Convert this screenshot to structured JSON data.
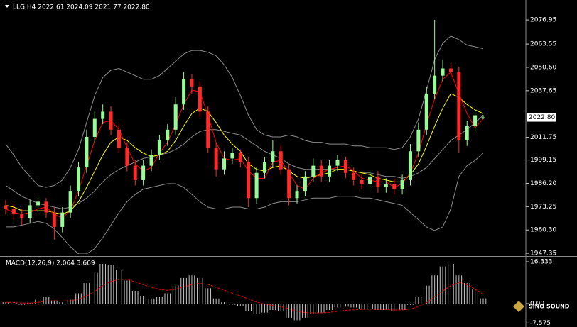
{
  "chart_data": [
    {
      "type": "candlestick",
      "title": "LLG,H4  2022.61 2024.09 2021.77 2022.80",
      "up_color": "#98fb98",
      "down_color": "#ff2a2a",
      "ylim": [
        1947.0,
        2088.0
      ],
      "yticks": [
        2076.95,
        2063.55,
        {
          "value": 2050.6,
          "label": "2050.60"
        },
        2037.65,
        2011.75,
        1999.15,
        {
          "value": 1986.2,
          "label": "1986.20"
        },
        1973.25,
        {
          "value": 1960.3,
          "label": "1960.30"
        },
        1947.35
      ],
      "last_price": {
        "value": 2022.8,
        "label": "2022.80"
      },
      "open": [
        1974,
        1972,
        1969,
        1967,
        1974,
        1976,
        1970,
        1962,
        1970,
        1982,
        1995,
        2012,
        2022,
        2026,
        2016,
        2006,
        1996,
        1988,
        1996,
        2002,
        2010,
        2016,
        2030,
        2044,
        2040,
        2026,
        2006,
        1994,
        2000,
        2003,
        1998,
        1978,
        1992,
        1998,
        2004,
        1994,
        1978,
        1982,
        1990,
        1996,
        1990,
        1996,
        1999,
        1992,
        1988,
        1986,
        1990,
        1984,
        1986,
        1983,
        1988,
        2004,
        2016,
        2036,
        2046,
        2050,
        2048,
        2010,
        2018,
        2022.61
      ],
      "high": [
        1977,
        1975,
        1972,
        1977,
        1979,
        1978,
        1973,
        1973,
        1985,
        1998,
        2016,
        2026,
        2030,
        2029,
        2019,
        2009,
        1999,
        1999,
        2005,
        2013,
        2019,
        2034,
        2048,
        2047,
        2043,
        2029,
        2009,
        2004,
        2006,
        2005,
        2001,
        1995,
        2001,
        2010,
        2007,
        1997,
        1985,
        1993,
        2000,
        1999,
        1999,
        2002,
        2001,
        1995,
        1991,
        1993,
        1993,
        1989,
        1989,
        1991,
        2008,
        2020,
        2040,
        2077,
        2055,
        2053,
        2051,
        2021,
        2027,
        2024.09
      ],
      "low": [
        1969,
        1966,
        1963,
        1964,
        1971,
        1967,
        1955,
        1959,
        1967,
        1979,
        1992,
        2009,
        2019,
        2013,
        2003,
        1993,
        1985,
        1985,
        1993,
        1999,
        2007,
        2013,
        2027,
        2036,
        2023,
        2003,
        1990,
        1991,
        1997,
        1995,
        1973,
        1975,
        1989,
        1995,
        1991,
        1974,
        1975,
        1979,
        1987,
        1987,
        1987,
        1993,
        1989,
        1985,
        1983,
        1983,
        1981,
        1981,
        1980,
        1980,
        1985,
        2001,
        2013,
        2033,
        2043,
        2045,
        2003,
        2007,
        2015,
        2021.77
      ],
      "close": [
        1972,
        1969,
        1967,
        1974,
        1976,
        1970,
        1962,
        1970,
        1982,
        1995,
        2012,
        2022,
        2026,
        2016,
        2006,
        1996,
        1988,
        1996,
        2002,
        2010,
        2016,
        2030,
        2044,
        2040,
        2026,
        2006,
        1994,
        2000,
        2003,
        1998,
        1978,
        1992,
        1998,
        2004,
        1994,
        1978,
        1982,
        1990,
        1996,
        1990,
        1996,
        1999,
        1992,
        1988,
        1986,
        1990,
        1984,
        1986,
        1983,
        1988,
        2004,
        2016,
        2036,
        2046,
        2050,
        2048,
        2010,
        2018,
        2024,
        2022.8
      ],
      "series": [
        {
          "color": "#8c8c8c",
          "values": [
            2008,
            2002,
            1995,
            1990,
            1985,
            1984,
            1985,
            1988,
            1995,
            2005,
            2020,
            2035,
            2045,
            2049,
            2050,
            2048,
            2046,
            2044,
            2044,
            2046,
            2050,
            2054,
            2058,
            2060,
            2060,
            2059,
            2057,
            2052,
            2045,
            2035,
            2024,
            2016,
            2013,
            2012,
            2012,
            2013,
            2012,
            2010,
            2009,
            2009,
            2008,
            2008,
            2008,
            2007,
            2007,
            2006,
            2006,
            2006,
            2005,
            2006,
            2012,
            2022,
            2038,
            2055,
            2064,
            2068,
            2066,
            2063,
            2062,
            2061
          ]
        },
        {
          "color": "#8c8c8c",
          "values": [
            1985,
            1982,
            1979,
            1977,
            1975,
            1974,
            1973,
            1972,
            1973,
            1975,
            1978,
            1982,
            1987,
            1991,
            1994,
            1996,
            1998,
            2000,
            2001,
            2002,
            2003,
            2005,
            2008,
            2012,
            2015,
            2016,
            2016,
            2015,
            2014,
            2013,
            2010,
            2007,
            2004,
            2002,
            2000,
            1997,
            1995,
            1994,
            1994,
            1994,
            1994,
            1994,
            1994,
            1993,
            1992,
            1992,
            1991,
            1990,
            1990,
            1989,
            1990,
            1992,
            1995,
            2000,
            2005,
            2010,
            2013,
            2016,
            2020,
            2024
          ]
        },
        {
          "color": "#8c8c8c",
          "values": [
            1962,
            1962,
            1963,
            1964,
            1965,
            1964,
            1961,
            1956,
            1951,
            1947,
            1947,
            1950,
            1956,
            1963,
            1970,
            1976,
            1980,
            1983,
            1984,
            1985,
            1986,
            1986,
            1984,
            1980,
            1976,
            1973,
            1972,
            1972,
            1973,
            1973,
            1972,
            1972,
            1973,
            1975,
            1976,
            1976,
            1976,
            1977,
            1978,
            1978,
            1978,
            1979,
            1979,
            1979,
            1978,
            1978,
            1977,
            1976,
            1975,
            1974,
            1970,
            1966,
            1962,
            1960,
            1962,
            1972,
            1990,
            1996,
            1999,
            2003
          ]
        },
        {
          "color": "#ffff00",
          "values": [
            1974,
            1973,
            1971,
            1971,
            1971,
            1971,
            1970,
            1969,
            1971,
            1976,
            1984,
            1993,
            2002,
            2009,
            2012,
            2010,
            2006,
            2003,
            2001,
            2002,
            2004,
            2010,
            2018,
            2025,
            2028,
            2026,
            2020,
            2013,
            2008,
            2004,
            1997,
            1994,
            1993,
            1995,
            1996,
            1993,
            1990,
            1989,
            1990,
            1991,
            1992,
            1994,
            1994,
            1993,
            1992,
            1991,
            1989,
            1988,
            1987,
            1987,
            1991,
            1997,
            2007,
            2018,
            2028,
            2036,
            2034,
            2030,
            2027,
            2025
          ]
        },
        {
          "color": "#ff0000",
          "values": [
            1972,
            1970,
            1969,
            1970,
            1972,
            1973,
            1969,
            1967,
            1971,
            1982,
            1996,
            2010,
            2020,
            2021,
            2016,
            2006,
            1997,
            1993,
            1995,
            2003,
            2009,
            2019,
            2030,
            2038,
            2037,
            2024,
            2009,
            2000,
            1999,
            2000,
            1993,
            1989,
            1989,
            1998,
            1999,
            1992,
            1985,
            1983,
            1989,
            1992,
            1994,
            1995,
            1996,
            1993,
            1989,
            1988,
            1987,
            1987,
            1984,
            1986,
            1992,
            2003,
            2019,
            2033,
            2044,
            2048,
            2036,
            2025,
            2017,
            2022
          ]
        }
      ]
    },
    {
      "type": "macd",
      "title": "MACD(12,26,9) 2.064 3.669",
      "ylim": [
        -9.14,
        18.27
      ],
      "yticks": [
        16.333,
        {
          "value": 0,
          "label": "0.00"
        },
        -7.575
      ],
      "histogram": {
        "color": "#c8c8c8",
        "values": [
          0.5,
          0.2,
          -0.5,
          0.3,
          1.5,
          2.5,
          1.2,
          0.5,
          1.5,
          4,
          8,
          12,
          15.5,
          15,
          13,
          9,
          5,
          3,
          2,
          2.5,
          4,
          7,
          10,
          11,
          10,
          6,
          2,
          0.5,
          -0.5,
          -1,
          -3,
          -4,
          -3.5,
          -2.5,
          -3,
          -5.5,
          -6.5,
          -5.5,
          -4,
          -3.5,
          -2.5,
          -1.5,
          -1.2,
          -1.5,
          -2,
          -2,
          -2.5,
          -2.5,
          -3,
          -2.5,
          -0.5,
          2.5,
          7,
          11,
          14.5,
          15.5,
          11,
          8,
          5.5,
          2.064
        ]
      },
      "signal": {
        "color": "#ff0000",
        "values": [
          0.5,
          0.4,
          0.2,
          0.2,
          0.5,
          1,
          1.1,
          1,
          1.1,
          1.7,
          3,
          4.8,
          7,
          8.6,
          9.5,
          9.4,
          8.5,
          7.4,
          6.3,
          5.5,
          5.2,
          5.6,
          6.5,
          7.4,
          7.9,
          7.5,
          6.4,
          5.2,
          4.1,
          3,
          1.8,
          0.6,
          -0.2,
          -0.7,
          -1.2,
          -2,
          -3,
          -3.5,
          -3.6,
          -3.6,
          -3.4,
          -3,
          -2.6,
          -2.4,
          -2.3,
          -2.2,
          -2.3,
          -2.3,
          -2.5,
          -2.5,
          -2.1,
          -1.2,
          0.4,
          2.5,
          4.9,
          7,
          8.2,
          7.4,
          5.6,
          3.669
        ]
      }
    }
  ],
  "watermark": {
    "text": "SINO SOUND"
  }
}
